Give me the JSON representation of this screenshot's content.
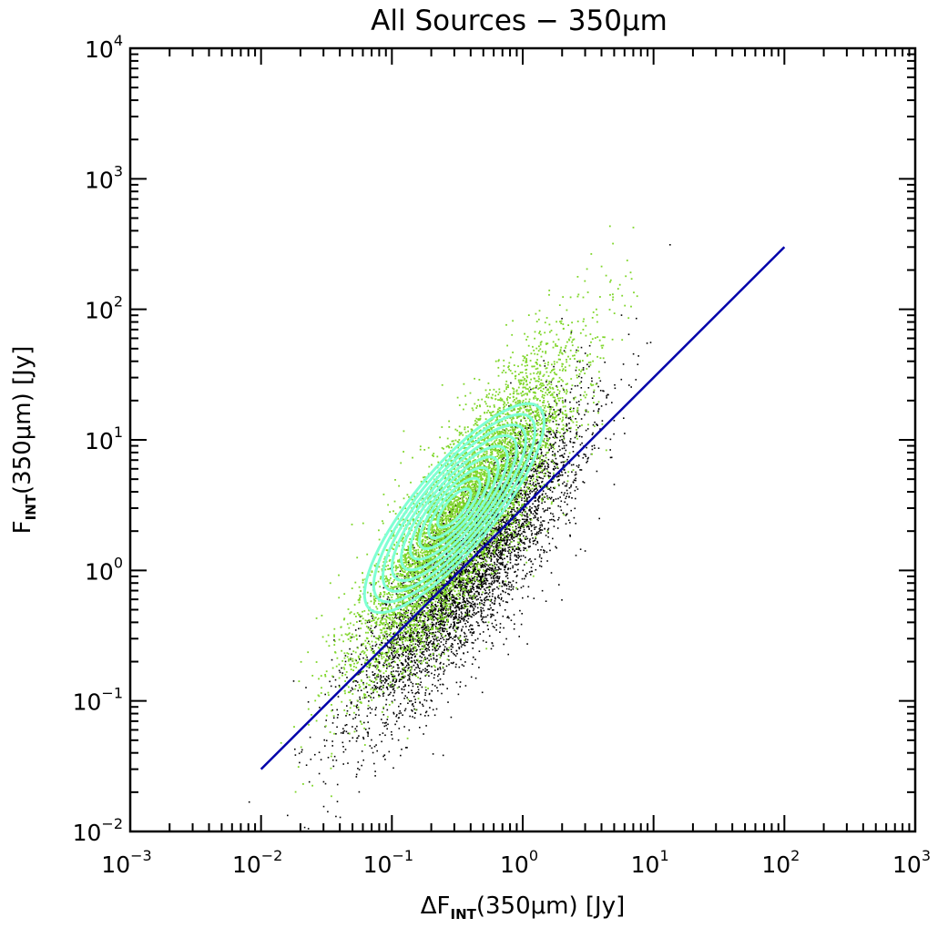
{
  "chart_data": {
    "type": "scatter",
    "title": "All Sources − 350μm",
    "xlabel": {
      "prefix": "ΔF",
      "sub": "INT",
      "suffix": "(350μm)  [Jy]"
    },
    "ylabel": {
      "prefix": "F",
      "sub": "INT",
      "suffix": "(350μm)   [Jy]"
    },
    "xscale": "log",
    "yscale": "log",
    "xlim": [
      0.001,
      1000
    ],
    "ylim": [
      0.01,
      10000
    ],
    "xticks": [
      {
        "base": "10",
        "exp": "−3"
      },
      {
        "base": "10",
        "exp": "−2"
      },
      {
        "base": "10",
        "exp": "−1"
      },
      {
        "base": "10",
        "exp": "0"
      },
      {
        "base": "10",
        "exp": "1"
      },
      {
        "base": "10",
        "exp": "2"
      },
      {
        "base": "10",
        "exp": "3"
      }
    ],
    "yticks": [
      {
        "base": "10",
        "exp": "−2"
      },
      {
        "base": "10",
        "exp": "−1"
      },
      {
        "base": "10",
        "exp": "0"
      },
      {
        "base": "10",
        "exp": "1"
      },
      {
        "base": "10",
        "exp": "2"
      },
      {
        "base": "10",
        "exp": "3"
      },
      {
        "base": "10",
        "exp": "4"
      }
    ],
    "grid": false,
    "series": [
      {
        "kind": "scatter",
        "color": "#000000",
        "center_log": [
          -0.4,
          0.05
        ],
        "note_count": 5000
      },
      {
        "kind": "scatter",
        "color": "#7fd62a",
        "center_log": [
          -0.45,
          0.45
        ]
      },
      {
        "kind": "contour",
        "color": "#7fffd4",
        "center": [
          0.3,
          3
        ],
        "levels": 9
      },
      {
        "kind": "line",
        "color": "#0000aa",
        "x": [
          0.01,
          100
        ],
        "y": [
          0.03,
          300
        ]
      }
    ]
  },
  "colors": {
    "points_dark": "#000000",
    "points_light": "#7fd62a",
    "contour": "#7fffd4",
    "fit_line": "#0000aa"
  }
}
